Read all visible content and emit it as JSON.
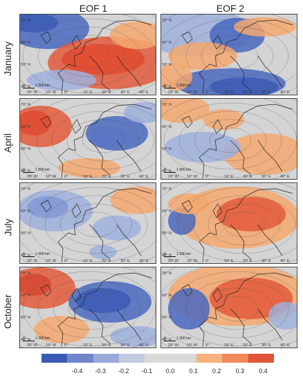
{
  "columns": [
    "EOF 1",
    "EOF 2"
  ],
  "rows": [
    "January",
    "April",
    "July",
    "October"
  ],
  "longitude_labels": [
    "20° W",
    "10° W",
    "0°",
    "10° E",
    "20° E",
    "30° E",
    "40° E"
  ],
  "latitude_labels": [
    "70° N",
    "60° N",
    "50° N",
    "40° N"
  ],
  "scale_label": "1 000 km",
  "colorbar": {
    "ticks": [
      "-0.4",
      "-0.3",
      "-0.2",
      "-0.1",
      "0.0",
      "0.1",
      "0.2",
      "0.3",
      "0.4"
    ],
    "colors": [
      "#3b5bb5",
      "#6f86cc",
      "#9aaad8",
      "#c3cbe0",
      "#d9d9d9",
      "#d9d9d9",
      "#f7b27f",
      "#f08a5b",
      "#e0553a"
    ]
  },
  "palette": {
    "blue": "#4a68c0",
    "lightblue": "#9fb0dc",
    "red": "#e35a3b",
    "orange": "#f4a86f",
    "land": "#cfcfcf"
  }
}
